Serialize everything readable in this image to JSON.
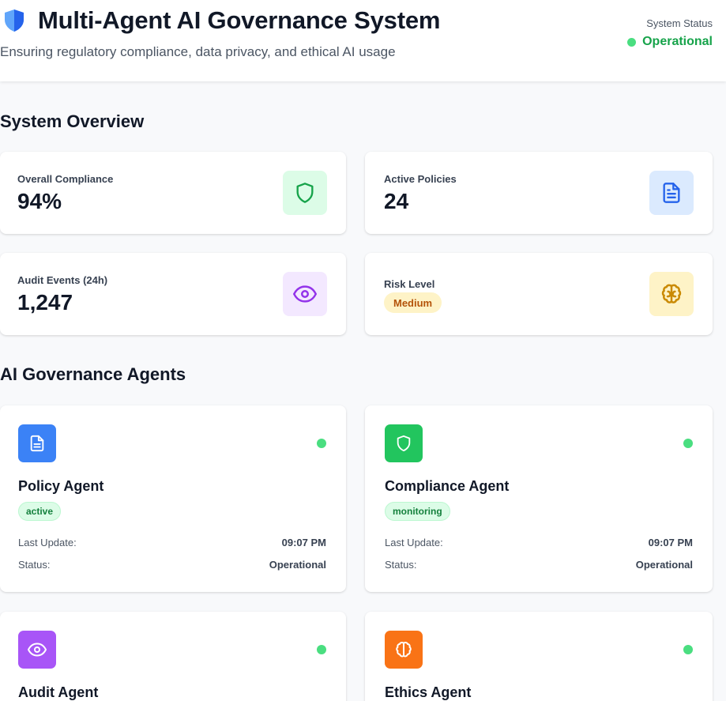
{
  "header": {
    "title": "Multi-Agent AI Governance System",
    "subtitle": "Ensuring regulatory compliance, data privacy, and ethical AI usage",
    "logo_icon": "shield-icon",
    "status_label": "System Status",
    "status_value": "Operational",
    "status_color": "#16a34a"
  },
  "overview": {
    "title": "System Overview",
    "cards": [
      {
        "label": "Overall Compliance",
        "value": "94%",
        "icon": "shield-icon",
        "icon_bg": "#dcfce7",
        "icon_color": "#16a34a"
      },
      {
        "label": "Active Policies",
        "value": "24",
        "icon": "document-icon",
        "icon_bg": "#dbeafe",
        "icon_color": "#2563eb"
      },
      {
        "label": "Audit Events (24h)",
        "value": "1,247",
        "icon": "eye-icon",
        "icon_bg": "#f3e8ff",
        "icon_color": "#9333ea"
      },
      {
        "label": "Risk Level",
        "value": "Medium",
        "icon": "brain-icon",
        "icon_bg": "#fef3c7",
        "icon_color": "#ca8a04"
      }
    ]
  },
  "agents": {
    "title": "AI Governance Agents",
    "last_update_label": "Last Update:",
    "status_label": "Status:",
    "items": [
      {
        "name": "Policy Agent",
        "badge": "active",
        "last_update": "09:07 PM",
        "status": "Operational",
        "icon": "document-icon",
        "icon_bg": "#3b82f6"
      },
      {
        "name": "Compliance Agent",
        "badge": "monitoring",
        "last_update": "09:07 PM",
        "status": "Operational",
        "icon": "shield-icon",
        "icon_bg": "#22c55e"
      },
      {
        "name": "Audit Agent",
        "icon": "eye-icon",
        "icon_bg": "#a855f7"
      },
      {
        "name": "Ethics Agent",
        "icon": "brain-icon",
        "icon_bg": "#f97316"
      }
    ]
  }
}
